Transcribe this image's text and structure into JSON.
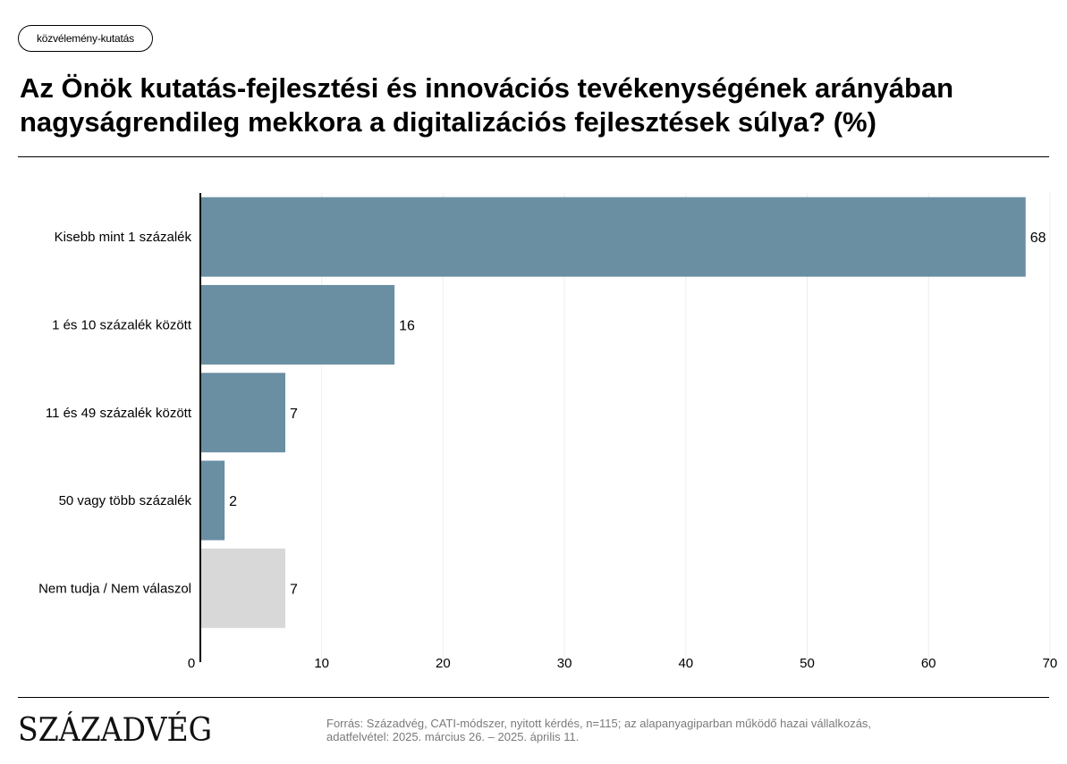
{
  "tag": "közvélemény-kutatás",
  "title": "Az Önök kutatás-fejlesztési és innovációs tevékenységének arányában nagyságrendileg mekkora a digitalizációs fejlesztések súlya? (%)",
  "brand": "SZÁZADVÉG",
  "source_line1": "Forrás: Századvég, CATI-módszer, nyitott kérdés, n=115; az alapanyagiparban működő hazai vállalkozás,",
  "source_line2": "adatfelvétel: 2025. március 26. – 2025. április 11.",
  "colors": {
    "bar": "#6a8fa3",
    "bar_muted": "#d8d8d8",
    "grid": "#eeeeee",
    "axis": "#000000"
  },
  "chart_data": {
    "type": "bar",
    "orientation": "horizontal",
    "categories": [
      "Kisebb mint 1 százalék",
      "1 és 10 százalék között",
      "11 és 49 százalék között",
      "50 vagy több százalék",
      "Nem tudja / Nem válaszol"
    ],
    "values": [
      68,
      16,
      7,
      2,
      7
    ],
    "muted": [
      false,
      false,
      false,
      false,
      true
    ],
    "xlim": [
      0,
      70
    ],
    "xticks": [
      0,
      10,
      20,
      30,
      40,
      50,
      60,
      70
    ],
    "grid": true
  }
}
